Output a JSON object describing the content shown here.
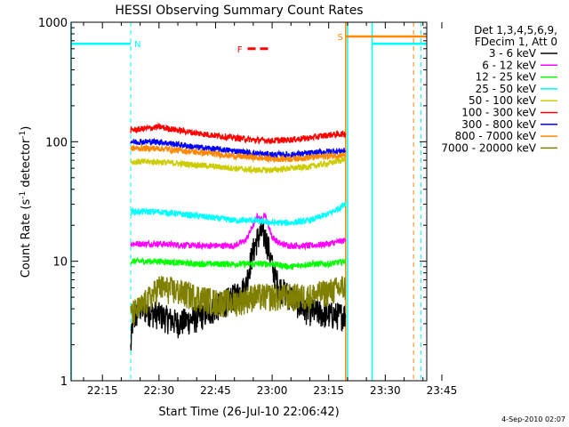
{
  "chart_data": {
    "type": "line",
    "title": "HESSI Observing Summary Count Rates",
    "xlabel": "Start Time (26-Jul-10 22:06:42)",
    "ylabel_main": "Count Rate (s",
    "ylabel_sup1": "-1",
    "ylabel_mid": " detector",
    "ylabel_sup2": "-1",
    "ylabel_end": ")",
    "yscale": "log",
    "xlim_minutes": [
      6.7,
      101.0
    ],
    "ylim": [
      1,
      1000
    ],
    "x_ticks": [
      {
        "m": 15,
        "label": "22:15"
      },
      {
        "m": 30,
        "label": "22:30"
      },
      {
        "m": 45,
        "label": "22:45"
      },
      {
        "m": 60,
        "label": "23:00"
      },
      {
        "m": 75,
        "label": "23:15"
      },
      {
        "m": 90,
        "label": "23:30"
      },
      {
        "m": 105,
        "label": "23:45"
      }
    ],
    "y_ticks": [
      {
        "v": 1,
        "label": "1"
      },
      {
        "v": 10,
        "label": "10"
      },
      {
        "v": 100,
        "label": "100"
      },
      {
        "v": 1000,
        "label": "1000"
      }
    ],
    "legend_header": [
      "Det 1,3,4,5,6,9,",
      "FDecim 1, Att 0"
    ],
    "series": [
      {
        "name": "3 - 6 keV",
        "color": "#000000",
        "x": [
          22.5,
          23,
          24,
          25,
          30,
          35,
          40,
          45,
          50,
          53,
          54,
          55,
          56,
          57,
          58,
          59,
          60,
          61,
          62,
          63,
          65,
          68,
          70,
          75,
          79.5
        ],
        "y": [
          1.8,
          3,
          3.5,
          4,
          3.5,
          3,
          3.3,
          4,
          5,
          6,
          9,
          12,
          15,
          17,
          16,
          13,
          9,
          7,
          6,
          5.5,
          5,
          4,
          3.8,
          3.5,
          3.5
        ]
      },
      {
        "name": "6 - 12 keV",
        "color": "#ff00ff",
        "x": [
          22.5,
          30,
          40,
          50,
          53,
          55,
          56,
          57,
          58,
          59,
          60,
          62,
          65,
          70,
          75,
          79.5
        ],
        "y": [
          14,
          14,
          13.5,
          13.5,
          15,
          20,
          24,
          22,
          25,
          20,
          16,
          14,
          13.5,
          13.5,
          14,
          15
        ]
      },
      {
        "name": "12 - 25 keV",
        "color": "#00ff00",
        "x": [
          22.5,
          30,
          40,
          50,
          55,
          60,
          65,
          70,
          75,
          79.5
        ],
        "y": [
          10,
          10,
          9.5,
          9.5,
          9.5,
          9.5,
          9,
          9.5,
          9.5,
          10
        ]
      },
      {
        "name": "25 - 50 keV",
        "color": "#00ffff",
        "x": [
          22.5,
          30,
          40,
          50,
          55,
          60,
          65,
          70,
          75,
          78,
          79.5
        ],
        "y": [
          26,
          26,
          24,
          22,
          22,
          21,
          21,
          22,
          25,
          28,
          31
        ]
      },
      {
        "name": "50 - 100 keV",
        "color": "#cccc00",
        "x": [
          22.5,
          30,
          40,
          50,
          55,
          60,
          65,
          70,
          75,
          79.5
        ],
        "y": [
          68,
          68,
          64,
          60,
          58,
          58,
          60,
          62,
          66,
          72
        ]
      },
      {
        "name": "100 - 300 keV",
        "color": "#ff0000",
        "x": [
          22.5,
          30,
          40,
          50,
          55,
          60,
          65,
          70,
          75,
          79.5
        ],
        "y": [
          125,
          133,
          118,
          108,
          104,
          102,
          104,
          108,
          114,
          117
        ]
      },
      {
        "name": "300 - 800 keV",
        "color": "#0000ff",
        "x": [
          22.5,
          30,
          40,
          50,
          55,
          60,
          65,
          70,
          75,
          79.5
        ],
        "y": [
          100,
          100,
          90,
          84,
          80,
          78,
          78,
          80,
          83,
          84
        ]
      },
      {
        "name": "800 - 7000 keV",
        "color": "#ff8800",
        "x": [
          22.5,
          30,
          40,
          50,
          55,
          60,
          65,
          70,
          75,
          79.5
        ],
        "y": [
          88,
          88,
          82,
          76,
          74,
          72,
          72,
          74,
          76,
          78
        ]
      },
      {
        "name": "7000 - 20000 keV",
        "color": "#808000",
        "x": [
          22.5,
          25,
          28,
          30,
          35,
          40,
          45,
          50,
          55,
          60,
          65,
          70,
          75,
          79.5
        ],
        "y": [
          3.5,
          4,
          5,
          6,
          5.5,
          5,
          4.5,
          4.5,
          5,
          5,
          5,
          5,
          5.5,
          6
        ]
      }
    ],
    "orbit_flags": [
      {
        "label": "N",
        "color": "#00ffff",
        "solid_m": [
          6.7,
          22.5
        ],
        "level": 660,
        "dashed_m": 22.5
      },
      {
        "label": "S",
        "color": "#ff8800",
        "solid_m": [
          79.5,
          101.0
        ],
        "level": 760,
        "dashed_m": 97.5
      },
      {
        "label": "",
        "color": "#00ffff",
        "solid_m": [
          86.5,
          101.0
        ],
        "level": 660,
        "dashed_m": 99.5
      }
    ],
    "flare_flag": {
      "label": "F",
      "color": "#ff0000",
      "x_m": [
        53.5,
        59.5
      ],
      "level": 600
    },
    "vertical_lines": [
      {
        "m": 6.7,
        "color": "#00ffff",
        "style": "solid"
      },
      {
        "m": 79.5,
        "color": "#ff8800",
        "style": "solid"
      },
      {
        "m": 80.0,
        "color": "#00ffff",
        "style": "solid"
      },
      {
        "m": 86.5,
        "color": "#00ffff",
        "style": "solid"
      }
    ]
  },
  "footer": {
    "date": "4-Sep-2010 02:07"
  }
}
